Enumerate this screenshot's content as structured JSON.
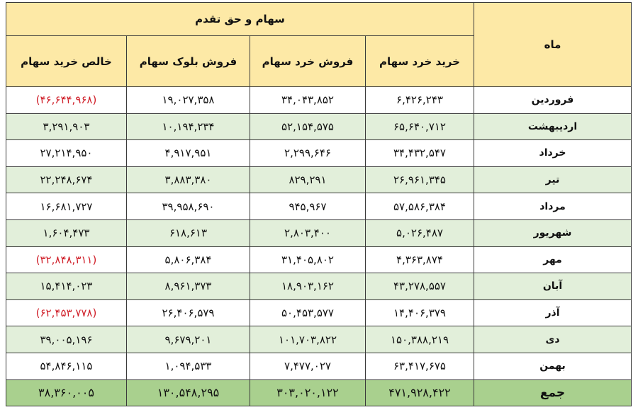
{
  "header": {
    "month": "ماه",
    "group": "سهام و حق تقدم",
    "columns": [
      "خرید خرد سهام",
      "فروش خرد سهام",
      "فروش  بلوک سهام",
      "خالص خرید سهام"
    ]
  },
  "rows": [
    {
      "month": "فروردین",
      "retail_buy": "۶,۴۲۶,۲۴۳",
      "retail_sell": "۳۴,۰۴۳,۸۵۲",
      "block_sell": "۱۹,۰۲۷,۳۵۸",
      "net_buy": "(۴۶,۶۴۴,۹۶۸)",
      "negative": true
    },
    {
      "month": "اردیبهشت",
      "retail_buy": "۶۵,۶۴۰,۷۱۲",
      "retail_sell": "۵۲,۱۵۴,۵۷۵",
      "block_sell": "۱۰,۱۹۴,۲۳۴",
      "net_buy": "۳,۲۹۱,۹۰۳",
      "negative": false
    },
    {
      "month": "خرداد",
      "retail_buy": "۳۴,۴۳۲,۵۴۷",
      "retail_sell": "۲,۲۹۹,۶۴۶",
      "block_sell": "۴,۹۱۷,۹۵۱",
      "net_buy": "۲۷,۲۱۴,۹۵۰",
      "negative": false
    },
    {
      "month": "تیر",
      "retail_buy": "۲۶,۹۶۱,۳۴۵",
      "retail_sell": "۸۲۹,۲۹۱",
      "block_sell": "۳,۸۸۳,۳۸۰",
      "net_buy": "۲۲,۲۴۸,۶۷۴",
      "negative": false
    },
    {
      "month": "مرداد",
      "retail_buy": "۵۷,۵۸۶,۳۸۴",
      "retail_sell": "۹۴۵,۹۶۷",
      "block_sell": "۳۹,۹۵۸,۶۹۰",
      "net_buy": "۱۶,۶۸۱,۷۲۷",
      "negative": false
    },
    {
      "month": "شهریور",
      "retail_buy": "۵,۰۲۶,۴۸۷",
      "retail_sell": "۲,۸۰۳,۴۰۰",
      "block_sell": "۶۱۸,۶۱۳",
      "net_buy": "۱,۶۰۴,۴۷۳",
      "negative": false
    },
    {
      "month": "مهر",
      "retail_buy": "۴,۳۶۳,۸۷۴",
      "retail_sell": "۳۱,۴۰۵,۸۰۲",
      "block_sell": "۵,۸۰۶,۳۸۴",
      "net_buy": "(۳۲,۸۴۸,۳۱۱)",
      "negative": true
    },
    {
      "month": "آبان",
      "retail_buy": "۴۳,۲۷۸,۵۵۷",
      "retail_sell": "۱۸,۹۰۳,۱۶۲",
      "block_sell": "۸,۹۶۱,۳۷۳",
      "net_buy": "۱۵,۴۱۴,۰۲۳",
      "negative": false
    },
    {
      "month": "آذر",
      "retail_buy": "۱۴,۴۰۶,۳۷۹",
      "retail_sell": "۵۰,۴۵۳,۵۷۷",
      "block_sell": "۲۶,۴۰۶,۵۷۹",
      "net_buy": "(۶۲,۴۵۳,۷۷۸)",
      "negative": true
    },
    {
      "month": "دی",
      "retail_buy": "۱۵۰,۳۸۸,۲۱۹",
      "retail_sell": "۱۰۱,۷۰۳,۸۲۲",
      "block_sell": "۹,۶۷۹,۲۰۱",
      "net_buy": "۳۹,۰۰۵,۱۹۶",
      "negative": false
    },
    {
      "month": "بهمن",
      "retail_buy": "۶۳,۴۱۷,۶۷۵",
      "retail_sell": "۷,۴۷۷,۰۲۷",
      "block_sell": "۱,۰۹۴,۵۳۳",
      "net_buy": "۵۴,۸۴۶,۱۱۵",
      "negative": false
    }
  ],
  "total": {
    "month": "جمع",
    "retail_buy": "۴۷۱,۹۲۸,۴۲۲",
    "retail_sell": "۳۰۳,۰۲۰,۱۲۲",
    "block_sell": "۱۳۰,۵۴۸,۲۹۵",
    "net_buy": "۳۸,۳۶۰,۰۰۵"
  },
  "colors": {
    "header": "#fde9a6",
    "zebra": "#e2efda",
    "total": "#a9d08e",
    "negative": "#d0202a"
  }
}
